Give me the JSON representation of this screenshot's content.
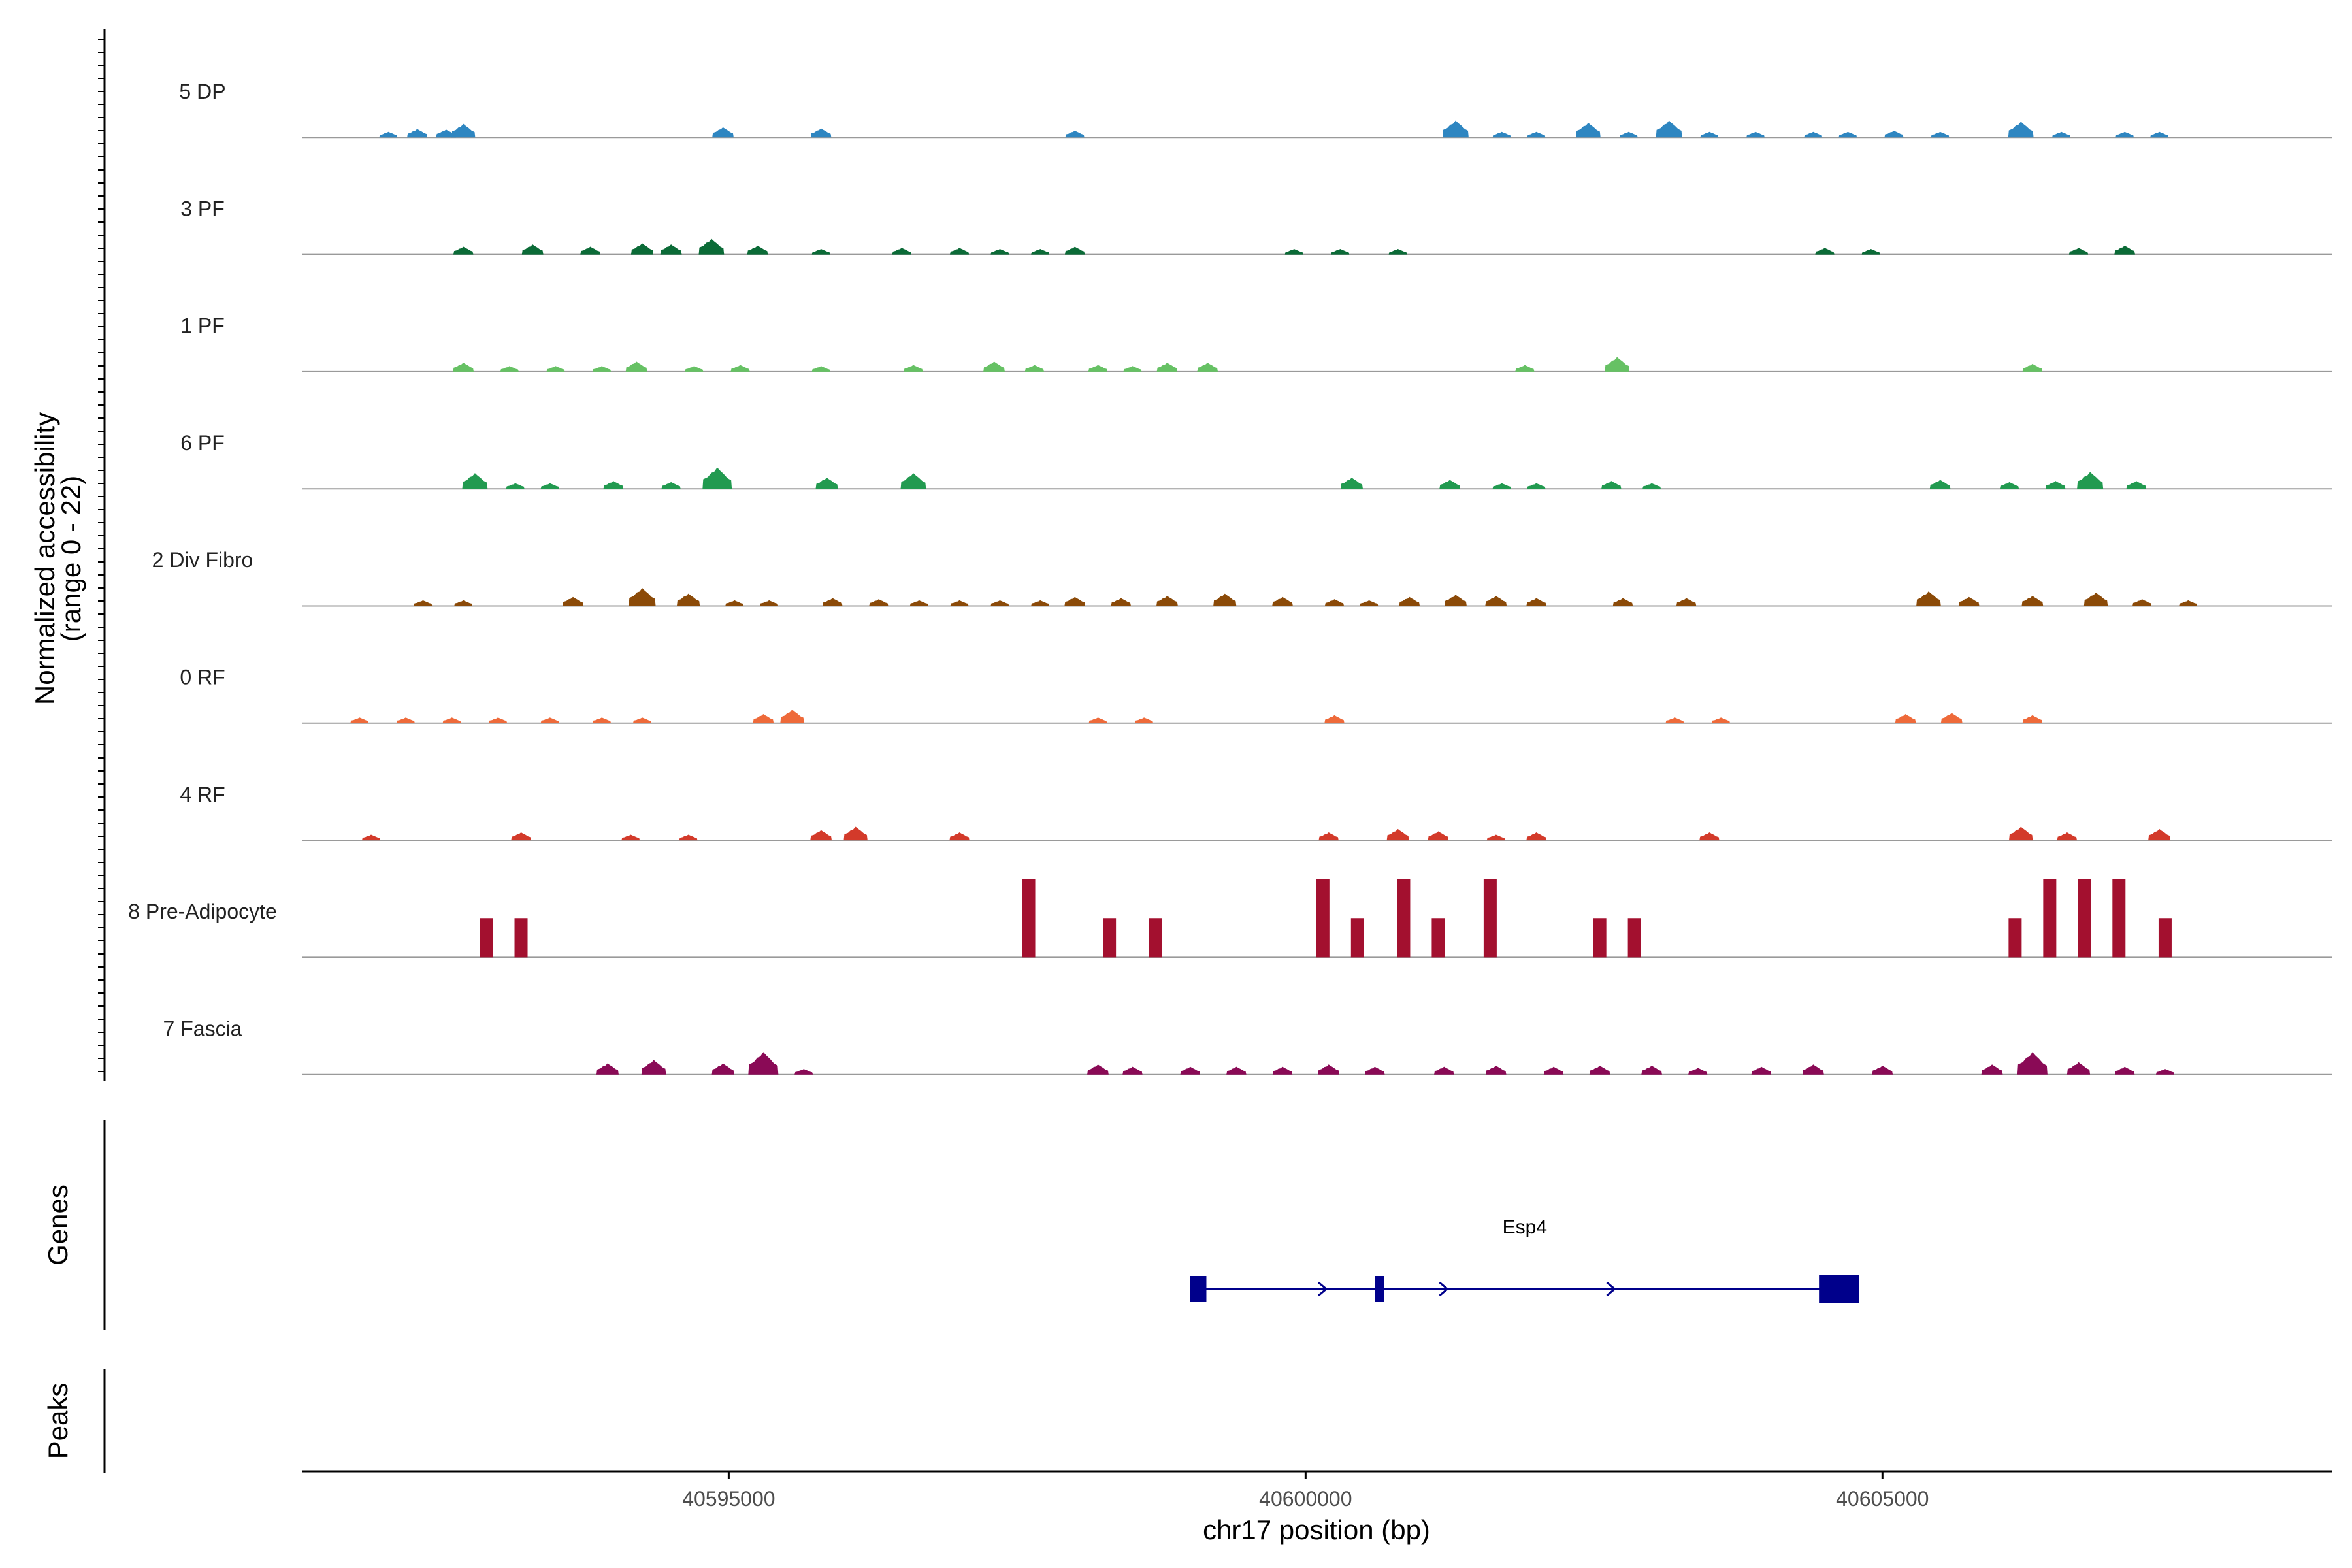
{
  "chart_data": {
    "type": "area",
    "title": "",
    "xlabel": "chr17 position (bp)",
    "ylabel": "Normalized accessibility",
    "ylabel_range": "(range 0 - 22)",
    "xlim": [
      40591300,
      40608900
    ],
    "ylim": [
      0,
      22
    ],
    "x_ticks": [
      40595000,
      40600000,
      40605000
    ],
    "x_tick_labels": [
      "40595000",
      "40600000",
      "40605000"
    ],
    "grid": false,
    "legend": "none",
    "tracks": [
      {
        "name": "5 DP",
        "color": "#2E86C1",
        "peaks": [
          [
            40592050,
            1
          ],
          [
            40592300,
            1.5
          ],
          [
            40592550,
            1.4
          ],
          [
            40592700,
            2.4
          ],
          [
            40594950,
            1.8
          ],
          [
            40595800,
            1.6
          ],
          [
            40598000,
            1.2
          ],
          [
            40601300,
            3
          ],
          [
            40601700,
            1
          ],
          [
            40602000,
            1
          ],
          [
            40602450,
            2.6
          ],
          [
            40602800,
            1
          ],
          [
            40603150,
            3
          ],
          [
            40603500,
            1
          ],
          [
            40603900,
            1
          ],
          [
            40604400,
            1
          ],
          [
            40604700,
            1
          ],
          [
            40605100,
            1.2
          ],
          [
            40605500,
            1
          ],
          [
            40606200,
            2.8
          ],
          [
            40606550,
            1
          ],
          [
            40607100,
            1
          ],
          [
            40607400,
            1
          ]
        ]
      },
      {
        "name": "3 PF",
        "color": "#0B6B37",
        "peaks": [
          [
            40592700,
            1.4
          ],
          [
            40593300,
            1.8
          ],
          [
            40593800,
            1.4
          ],
          [
            40594250,
            2
          ],
          [
            40594500,
            1.8
          ],
          [
            40594850,
            2.8
          ],
          [
            40595250,
            1.6
          ],
          [
            40595800,
            1
          ],
          [
            40596500,
            1.2
          ],
          [
            40597000,
            1.2
          ],
          [
            40597350,
            1
          ],
          [
            40597700,
            1
          ],
          [
            40598000,
            1.4
          ],
          [
            40599900,
            1
          ],
          [
            40600300,
            1
          ],
          [
            40600800,
            1
          ],
          [
            40604500,
            1.2
          ],
          [
            40604900,
            1
          ],
          [
            40606700,
            1.2
          ],
          [
            40607100,
            1.6
          ]
        ]
      },
      {
        "name": "1 PF",
        "color": "#66C164",
        "peaks": [
          [
            40592700,
            1.6
          ],
          [
            40593100,
            1
          ],
          [
            40593500,
            1
          ],
          [
            40593900,
            1
          ],
          [
            40594200,
            1.8
          ],
          [
            40594700,
            1
          ],
          [
            40595100,
            1.2
          ],
          [
            40595800,
            1
          ],
          [
            40596600,
            1.2
          ],
          [
            40597300,
            1.8
          ],
          [
            40597650,
            1.2
          ],
          [
            40598200,
            1.2
          ],
          [
            40598500,
            1
          ],
          [
            40598800,
            1.6
          ],
          [
            40599150,
            1.6
          ],
          [
            40601900,
            1.2
          ],
          [
            40602700,
            2.6
          ],
          [
            40606300,
            1.4
          ]
        ]
      },
      {
        "name": "6 PF",
        "color": "#229A50",
        "peaks": [
          [
            40592800,
            2.8
          ],
          [
            40593150,
            1
          ],
          [
            40593450,
            1
          ],
          [
            40594000,
            1.4
          ],
          [
            40594500,
            1.2
          ],
          [
            40594900,
            3.8
          ],
          [
            40595850,
            2
          ],
          [
            40596600,
            2.8
          ],
          [
            40600400,
            2
          ],
          [
            40601250,
            1.6
          ],
          [
            40601700,
            1
          ],
          [
            40602000,
            1
          ],
          [
            40602650,
            1.4
          ],
          [
            40603000,
            1
          ],
          [
            40605500,
            1.6
          ],
          [
            40606100,
            1.2
          ],
          [
            40606500,
            1.4
          ],
          [
            40606800,
            3
          ],
          [
            40607200,
            1.4
          ]
        ]
      },
      {
        "name": "2 Div Fibro",
        "color": "#8B4A08",
        "peaks": [
          [
            40592350,
            1
          ],
          [
            40592700,
            1
          ],
          [
            40593650,
            1.6
          ],
          [
            40594250,
            3.2
          ],
          [
            40594650,
            2.2
          ],
          [
            40595050,
            1
          ],
          [
            40595350,
            1
          ],
          [
            40595900,
            1.4
          ],
          [
            40596300,
            1.2
          ],
          [
            40596650,
            1
          ],
          [
            40597000,
            1
          ],
          [
            40597350,
            1
          ],
          [
            40597700,
            1
          ],
          [
            40598000,
            1.6
          ],
          [
            40598400,
            1.4
          ],
          [
            40598800,
            1.8
          ],
          [
            40599300,
            2.2
          ],
          [
            40599800,
            1.6
          ],
          [
            40600250,
            1.2
          ],
          [
            40600550,
            1
          ],
          [
            40600900,
            1.6
          ],
          [
            40601300,
            2
          ],
          [
            40601650,
            1.8
          ],
          [
            40602000,
            1.4
          ],
          [
            40602750,
            1.4
          ],
          [
            40603300,
            1.4
          ],
          [
            40605400,
            2.6
          ],
          [
            40605750,
            1.6
          ],
          [
            40606300,
            1.8
          ],
          [
            40606850,
            2.4
          ],
          [
            40607250,
            1.2
          ],
          [
            40607650,
            1
          ]
        ]
      },
      {
        "name": "0 RF",
        "color": "#EE6A3A",
        "peaks": [
          [
            40591800,
            1
          ],
          [
            40592200,
            1
          ],
          [
            40592600,
            1
          ],
          [
            40593000,
            1
          ],
          [
            40593450,
            1
          ],
          [
            40593900,
            1
          ],
          [
            40594250,
            1
          ],
          [
            40595300,
            1.6
          ],
          [
            40595550,
            2.4
          ],
          [
            40598200,
            1
          ],
          [
            40598600,
            1
          ],
          [
            40600250,
            1.4
          ],
          [
            40603200,
            1
          ],
          [
            40603600,
            1
          ],
          [
            40605200,
            1.6
          ],
          [
            40605600,
            1.8
          ],
          [
            40606300,
            1.4
          ]
        ]
      },
      {
        "name": "4 RF",
        "color": "#D33A2A",
        "peaks": [
          [
            40591900,
            1
          ],
          [
            40593200,
            1.4
          ],
          [
            40594150,
            1
          ],
          [
            40594650,
            1
          ],
          [
            40595800,
            1.8
          ],
          [
            40596100,
            2.4
          ],
          [
            40597000,
            1.4
          ],
          [
            40600200,
            1.4
          ],
          [
            40600800,
            2
          ],
          [
            40601150,
            1.6
          ],
          [
            40601650,
            1
          ],
          [
            40602000,
            1.4
          ],
          [
            40603500,
            1.4
          ],
          [
            40606200,
            2.4
          ],
          [
            40606600,
            1.4
          ],
          [
            40607400,
            2
          ]
        ]
      },
      {
        "name": "8 Pre-Adipocyte",
        "color": "#A3102F",
        "peaks": [
          [
            40592900,
            7
          ],
          [
            40593200,
            7
          ],
          [
            40597600,
            14
          ],
          [
            40598300,
            7
          ],
          [
            40598700,
            7
          ],
          [
            40600150,
            14
          ],
          [
            40600450,
            7
          ],
          [
            40600850,
            14
          ],
          [
            40601150,
            7
          ],
          [
            40601600,
            14
          ],
          [
            40602550,
            7
          ],
          [
            40602850,
            7
          ],
          [
            40606150,
            7
          ],
          [
            40606450,
            14
          ],
          [
            40606750,
            14
          ],
          [
            40607050,
            14
          ],
          [
            40607450,
            7
          ]
        ]
      },
      {
        "name": "7 Fascia",
        "color": "#8A0A56",
        "peaks": [
          [
            40593950,
            2
          ],
          [
            40594350,
            2.6
          ],
          [
            40594950,
            2
          ],
          [
            40595300,
            4
          ],
          [
            40595650,
            1
          ],
          [
            40598200,
            1.8
          ],
          [
            40598500,
            1.4
          ],
          [
            40599000,
            1.4
          ],
          [
            40599400,
            1.4
          ],
          [
            40599800,
            1.4
          ],
          [
            40600200,
            1.8
          ],
          [
            40600600,
            1.4
          ],
          [
            40601200,
            1.4
          ],
          [
            40601650,
            1.6
          ],
          [
            40602150,
            1.4
          ],
          [
            40602550,
            1.6
          ],
          [
            40603000,
            1.6
          ],
          [
            40603400,
            1.2
          ],
          [
            40603950,
            1.4
          ],
          [
            40604400,
            1.8
          ],
          [
            40605000,
            1.6
          ],
          [
            40605950,
            1.8
          ],
          [
            40606300,
            4
          ],
          [
            40606700,
            2.2
          ],
          [
            40607100,
            1.4
          ],
          [
            40607450,
            1
          ]
        ]
      }
    ],
    "genes": [
      {
        "name": "Esp4",
        "strand": "+",
        "start": 40599000,
        "end": 40604800,
        "exons": [
          [
            40599000,
            40599140
          ],
          [
            40600600,
            40600680
          ],
          [
            40604450,
            40604800
          ]
        ],
        "arrows": [
          40599000,
          40600100,
          40601150,
          40602600
        ]
      }
    ],
    "side_panels": [
      "Genes",
      "Peaks"
    ]
  }
}
